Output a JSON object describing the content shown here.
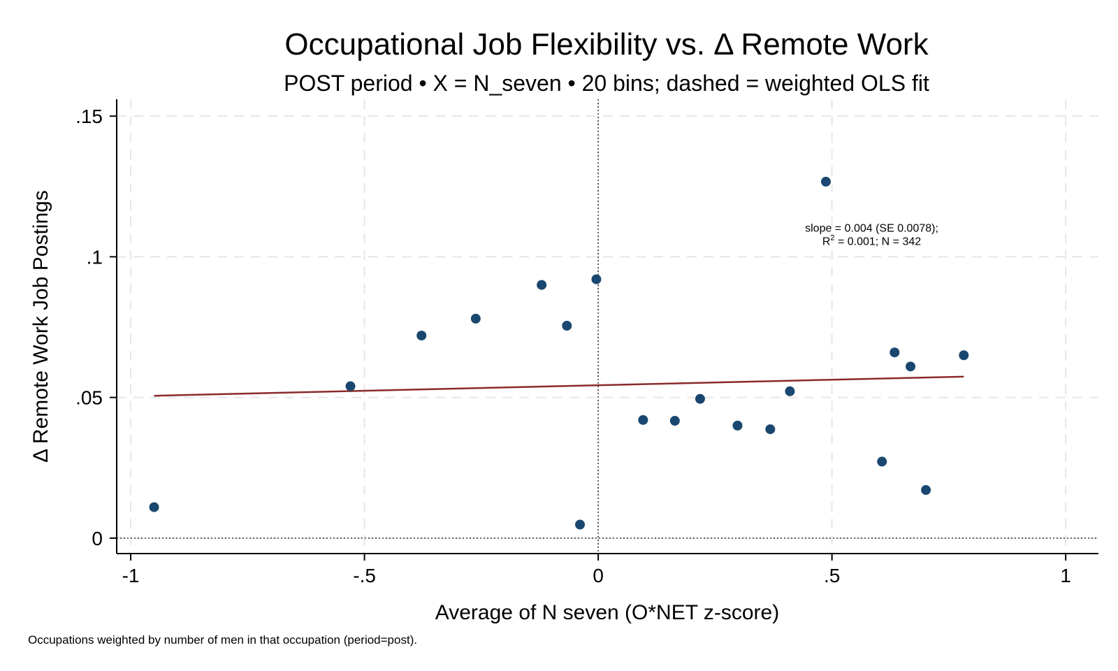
{
  "chart_data": {
    "type": "scatter",
    "title": "Occupational Job Flexibility vs. Δ Remote Work",
    "subtitle": "POST period • X = N_seven • 20 bins; dashed = weighted OLS fit",
    "xlabel": "Average of N seven (O*NET z-score)",
    "ylabel": "Δ Remote Work Job Postings",
    "xlim": [
      -1.03,
      1.07
    ],
    "ylim": [
      -0.0055,
      0.156
    ],
    "x_ticks": [
      -1,
      -0.5,
      0,
      0.5,
      1
    ],
    "x_tick_labels": [
      "-1",
      "-.5",
      "0",
      ".5",
      "1"
    ],
    "y_ticks": [
      0,
      0.05,
      0.1,
      0.15
    ],
    "y_tick_labels": [
      "0",
      ".05",
      ".1",
      ".15"
    ],
    "grid": true,
    "reference_lines": {
      "x": 0,
      "y": 0
    },
    "series": [
      {
        "name": "bins",
        "color": "#1a476f",
        "points": [
          {
            "x": -0.95,
            "y": 0.011
          },
          {
            "x": -0.53,
            "y": 0.054
          },
          {
            "x": -0.378,
            "y": 0.072
          },
          {
            "x": -0.262,
            "y": 0.078
          },
          {
            "x": -0.121,
            "y": 0.09
          },
          {
            "x": -0.067,
            "y": 0.0755
          },
          {
            "x": -0.039,
            "y": 0.0048
          },
          {
            "x": -0.004,
            "y": 0.092
          },
          {
            "x": 0.096,
            "y": 0.042
          },
          {
            "x": 0.164,
            "y": 0.0417
          },
          {
            "x": 0.218,
            "y": 0.0495
          },
          {
            "x": 0.298,
            "y": 0.04
          },
          {
            "x": 0.368,
            "y": 0.0387
          },
          {
            "x": 0.41,
            "y": 0.0522
          },
          {
            "x": 0.487,
            "y": 0.1267
          },
          {
            "x": 0.607,
            "y": 0.0272
          },
          {
            "x": 0.634,
            "y": 0.066
          },
          {
            "x": 0.668,
            "y": 0.061
          },
          {
            "x": 0.701,
            "y": 0.0171
          },
          {
            "x": 0.782,
            "y": 0.065
          }
        ]
      }
    ],
    "fit_line": {
      "name": "weighted OLS fit",
      "color": "#8b2a2a",
      "x": [
        -0.95,
        0.782
      ],
      "y": [
        0.0506,
        0.0574
      ]
    },
    "annotations": {
      "line1": "slope = 0.004  (SE 0.0078);",
      "line2_r": "R",
      "line2_sup": "2",
      "line2_rest": " = 0.001;  N = 342",
      "anchor_x": 0.585,
      "anchor_y": 0.105
    },
    "note": "Occupations weighted by number of men in that occupation (period=post)."
  }
}
